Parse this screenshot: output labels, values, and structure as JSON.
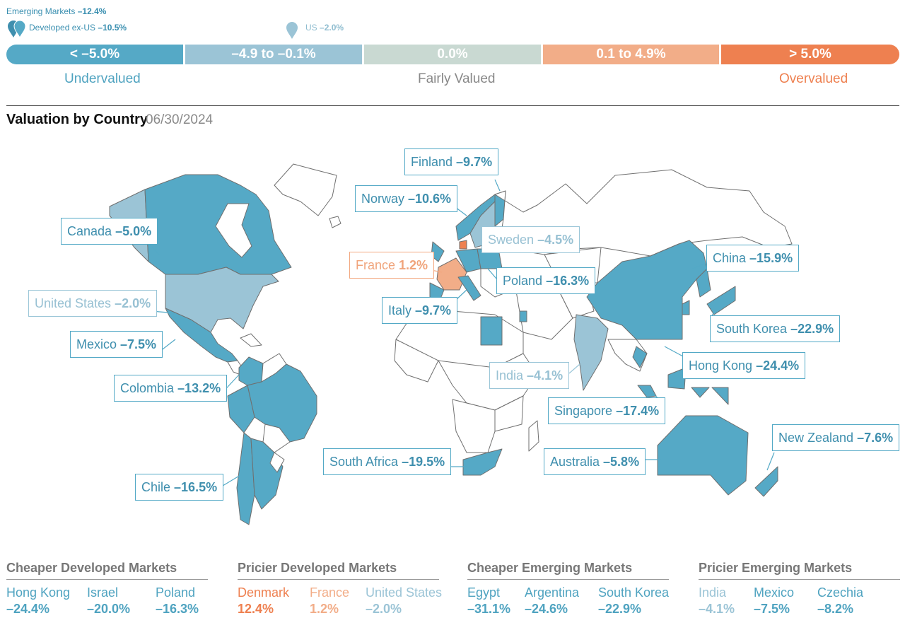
{
  "markers": {
    "emerging": {
      "label": "Emerging Markets",
      "value": "–12.4%"
    },
    "developed": {
      "label": "Developed ex-US",
      "value": "–10.5%"
    },
    "us": {
      "label": "US",
      "value": "–2.0%"
    }
  },
  "scale": {
    "segments": [
      {
        "label": "< –5.0%",
        "color": "#55a9c6"
      },
      {
        "label": "–4.9 to –0.1%",
        "color": "#9bc4d6"
      },
      {
        "label": "0.0%",
        "color": "#c9d9d2"
      },
      {
        "label": "0.1 to 4.9%",
        "color": "#f2ad88"
      },
      {
        "label": "> 5.0%",
        "color": "#ee8050"
      }
    ],
    "undervalued": "Undervalued",
    "fairly": "Fairly Valued",
    "overvalued": "Overvalued"
  },
  "title": "Valuation by Country",
  "date": "06/30/2024",
  "callouts": {
    "finland": {
      "name": "Finland",
      "value": "–9.7%"
    },
    "norway": {
      "name": "Norway",
      "value": "–10.6%"
    },
    "sweden": {
      "name": "Sweden",
      "value": "–4.5%"
    },
    "france": {
      "name": "France",
      "value": "1.2%"
    },
    "poland": {
      "name": "Poland",
      "value": "–16.3%"
    },
    "italy": {
      "name": "Italy",
      "value": "–9.7%"
    },
    "canada": {
      "name": "Canada",
      "value": "–5.0%"
    },
    "us": {
      "name": "United States",
      "value": "–2.0%"
    },
    "mexico": {
      "name": "Mexico",
      "value": "–7.5%"
    },
    "colombia": {
      "name": "Colombia",
      "value": "–13.2%"
    },
    "chile": {
      "name": "Chile",
      "value": "–16.5%"
    },
    "china": {
      "name": "China",
      "value": "–15.9%"
    },
    "korea": {
      "name": "South Korea",
      "value": "–22.9%"
    },
    "hongkong": {
      "name": "Hong Kong",
      "value": "–24.4%"
    },
    "india": {
      "name": "India",
      "value": "–4.1%"
    },
    "singapore": {
      "name": "Singapore",
      "value": "–17.4%"
    },
    "southafrica": {
      "name": "South Africa",
      "value": "–19.5%"
    },
    "australia": {
      "name": "Australia",
      "value": "–5.8%"
    },
    "newzealand": {
      "name": "New Zealand",
      "value": "–7.6%"
    }
  },
  "groups": {
    "cheaper_developed": {
      "title": "Cheaper Developed Markets",
      "items": [
        {
          "name": "Hong Kong",
          "value": "–24.4%"
        },
        {
          "name": "Israel",
          "value": "–20.0%"
        },
        {
          "name": "Poland",
          "value": "–16.3%"
        }
      ]
    },
    "pricier_developed": {
      "title": "Pricier Developed Markets",
      "items": [
        {
          "name": "Denmark",
          "value": "12.4%"
        },
        {
          "name": "France",
          "value": "1.2%"
        },
        {
          "name": "United States",
          "value": "–2.0%"
        }
      ]
    },
    "cheaper_emerging": {
      "title": "Cheaper Emerging Markets",
      "items": [
        {
          "name": "Egypt",
          "value": "–31.1%"
        },
        {
          "name": "Argentina",
          "value": "–24.6%"
        },
        {
          "name": "South Korea",
          "value": "–22.9%"
        }
      ]
    },
    "pricier_emerging": {
      "title": "Pricier Emerging Markets",
      "items": [
        {
          "name": "India",
          "value": "–4.1%"
        },
        {
          "name": "Mexico",
          "value": "–7.5%"
        },
        {
          "name": "Czechia",
          "value": "–8.2%"
        }
      ]
    }
  },
  "colors": {
    "dark_blue": "#55a9c6",
    "light_blue": "#9bc4d6",
    "orange": "#f2ad88",
    "dark_orange": "#ee8050",
    "outline": "#777777"
  }
}
